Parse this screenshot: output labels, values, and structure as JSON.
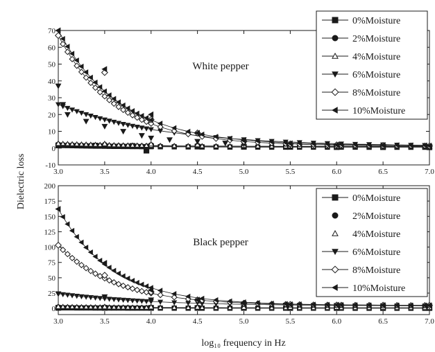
{
  "figure": {
    "ylabel": "Dielectric loss",
    "xlabel": "log₁₀ frequency in Hz"
  },
  "chart_data": [
    {
      "type": "scatter",
      "title": "White pepper",
      "xlim": [
        3.0,
        7.0
      ],
      "ylim": [
        -10,
        70
      ],
      "xticks": [
        "3.0",
        "3.5",
        "4.0",
        "4.5",
        "5.0",
        "5.5",
        "6.0",
        "6.5",
        "7.0"
      ],
      "yticks": [
        "-10",
        "0",
        "10",
        "20",
        "30",
        "40",
        "50",
        "60",
        "70"
      ],
      "legend_position": "top-right",
      "series": [
        {
          "name": "0%Moisture",
          "marker": "square",
          "fill": "#1a1a1a",
          "connected": true,
          "model": {
            "type": "exp",
            "a": 1.6,
            "b": 0.5,
            "r": 1.2
          },
          "x": [
            3.0,
            3.4,
            3.8,
            3.95,
            4.0,
            4.5,
            5.0,
            5.5,
            6.0,
            6.5,
            7.0
          ],
          "y": [
            1.6,
            1.5,
            1.3,
            -1.5,
            1.2,
            0.9,
            0.8,
            0.7,
            0.6,
            0.6,
            0.5
          ]
        },
        {
          "name": "2%Moisture",
          "marker": "circle",
          "fill": "#1a1a1a",
          "connected": true,
          "model": {
            "type": "exp",
            "a": 2.2,
            "b": 0.8,
            "r": 1.2
          },
          "x": [
            3.0,
            3.5,
            4.0,
            4.5,
            5.0,
            5.5,
            6.0,
            6.5,
            7.0
          ],
          "y": [
            2.2,
            2.0,
            1.8,
            1.5,
            1.2,
            1.0,
            0.9,
            0.85,
            0.8
          ]
        },
        {
          "name": "4%Moisture",
          "marker": "triangle-up",
          "fill": "#ffffff",
          "connected": true,
          "model": {
            "type": "exp",
            "a": 2.8,
            "b": 1.0,
            "r": 1.2
          },
          "x": [
            3.0,
            3.5,
            4.0,
            4.5,
            5.0,
            5.5,
            6.0,
            6.5,
            7.0
          ],
          "y": [
            2.8,
            2.6,
            2.4,
            2.0,
            1.6,
            1.3,
            1.1,
            1.0,
            1.0
          ]
        },
        {
          "name": "6%Moisture",
          "marker": "triangle-down",
          "fill": "#1a1a1a",
          "connected": true,
          "model": {
            "type": "exp",
            "a": 26,
            "b": 1.0,
            "r": 0.9
          },
          "x": [
            3.0,
            3.05,
            3.1,
            3.3,
            3.5,
            3.7,
            3.9,
            4.0,
            4.2,
            4.5,
            4.8,
            5.0,
            5.5,
            6.0,
            6.5,
            7.0
          ],
          "y": [
            37,
            26,
            20,
            16,
            13,
            10,
            7.5,
            6.0,
            5.0,
            4.0,
            3.0,
            2.5,
            1.8,
            1.4,
            1.2,
            1.0
          ]
        },
        {
          "name": "8%Moisture",
          "marker": "diamond",
          "fill": "#ffffff",
          "connected": true,
          "model": {
            "type": "exp",
            "a": 67,
            "b": 1.3,
            "r": 1.6
          },
          "x": [
            3.0,
            3.5,
            4.0,
            4.5,
            5.0,
            5.5,
            6.0,
            6.5,
            7.0
          ],
          "y": [
            67,
            45,
            17,
            9,
            4,
            2.5,
            1.9,
            1.6,
            1.3
          ]
        },
        {
          "name": "10%Moisture",
          "marker": "triangle-left",
          "fill": "#1a1a1a",
          "connected": true,
          "model": {
            "type": "exp",
            "a": 70,
            "b": 1.5,
            "r": 1.5
          },
          "x": [
            3.0,
            3.5,
            4.0,
            4.5,
            5.0,
            5.5,
            6.0,
            6.5,
            7.0
          ],
          "y": [
            70,
            47,
            20,
            9,
            4.5,
            2.8,
            2.0,
            1.7,
            1.4
          ]
        }
      ]
    },
    {
      "type": "scatter",
      "title": "Black pepper",
      "xlim": [
        3.0,
        7.0
      ],
      "ylim": [
        -10,
        200
      ],
      "xticks": [
        "3.0",
        "3.5",
        "4.0",
        "4.5",
        "5.0",
        "5.5",
        "6.0",
        "6.5",
        "7.0"
      ],
      "yticks": [
        "0",
        "25",
        "50",
        "75",
        "100",
        "125",
        "150",
        "175",
        "200"
      ],
      "legend_position": "top-right",
      "series": [
        {
          "name": "0%Moisture",
          "marker": "square",
          "fill": "#1a1a1a",
          "connected": true,
          "model": {
            "type": "exp",
            "a": 1.0,
            "b": 0.3,
            "r": 1.2
          },
          "x": [
            3.0,
            3.5,
            4.0,
            4.5,
            5.0,
            5.5,
            6.0,
            6.5,
            7.0
          ],
          "y": [
            1.0,
            1.0,
            0.9,
            0.8,
            0.8,
            0.7,
            0.7,
            0.7,
            0.7
          ]
        },
        {
          "name": "2%Moisture",
          "marker": "circle",
          "fill": "#1a1a1a",
          "connected": false,
          "model": {
            "type": "exp",
            "a": 2.0,
            "b": 0.8,
            "r": 1.2
          },
          "x": [
            3.0,
            3.5,
            4.0,
            4.5,
            5.0,
            5.5,
            6.0,
            6.5,
            7.0
          ],
          "y": [
            2.0,
            1.8,
            1.6,
            1.4,
            1.3,
            1.2,
            1.2,
            1.1,
            1.1
          ]
        },
        {
          "name": "4%Moisture",
          "marker": "triangle-up",
          "fill": "#ffffff",
          "connected": false,
          "model": {
            "type": "exp",
            "a": 3.0,
            "b": 1.0,
            "r": 1.2
          },
          "x": [
            3.0,
            3.5,
            4.0,
            4.5,
            5.0,
            5.5,
            6.0,
            6.5,
            7.0
          ],
          "y": [
            3.0,
            2.7,
            2.4,
            2.1,
            1.9,
            1.8,
            1.7,
            1.6,
            1.6
          ]
        },
        {
          "name": "6%Moisture",
          "marker": "triangle-down",
          "fill": "#1a1a1a",
          "connected": true,
          "model": {
            "type": "exp",
            "a": 24,
            "b": 4.0,
            "r": 1.0
          },
          "x": [
            3.0,
            3.5,
            4.0,
            4.5,
            5.0,
            5.5,
            6.0,
            6.5,
            7.0
          ],
          "y": [
            24,
            19,
            14,
            10,
            7.5,
            6.0,
            5.0,
            4.5,
            4.0
          ]
        },
        {
          "name": "8%Moisture",
          "marker": "diamond",
          "fill": "#ffffff",
          "connected": true,
          "model": {
            "type": "exp",
            "a": 103,
            "b": 5.0,
            "r": 1.6
          },
          "x": [
            3.0,
            3.5,
            4.0,
            4.5,
            5.0,
            5.5,
            6.0,
            6.5,
            7.0
          ],
          "y": [
            103,
            54,
            27,
            14,
            8,
            6.5,
            5.5,
            5.2,
            5.0
          ]
        },
        {
          "name": "10%Moisture",
          "marker": "triangle-left",
          "fill": "#1a1a1a",
          "connected": true,
          "model": {
            "type": "exp",
            "a": 162,
            "b": 5.0,
            "r": 1.7
          },
          "x": [
            3.0,
            3.5,
            4.0,
            4.5,
            5.0,
            5.5,
            6.0,
            6.5,
            7.0
          ],
          "y": [
            162,
            74,
            30,
            14,
            8,
            6.5,
            5.8,
            5.3,
            5.0
          ]
        }
      ]
    }
  ]
}
